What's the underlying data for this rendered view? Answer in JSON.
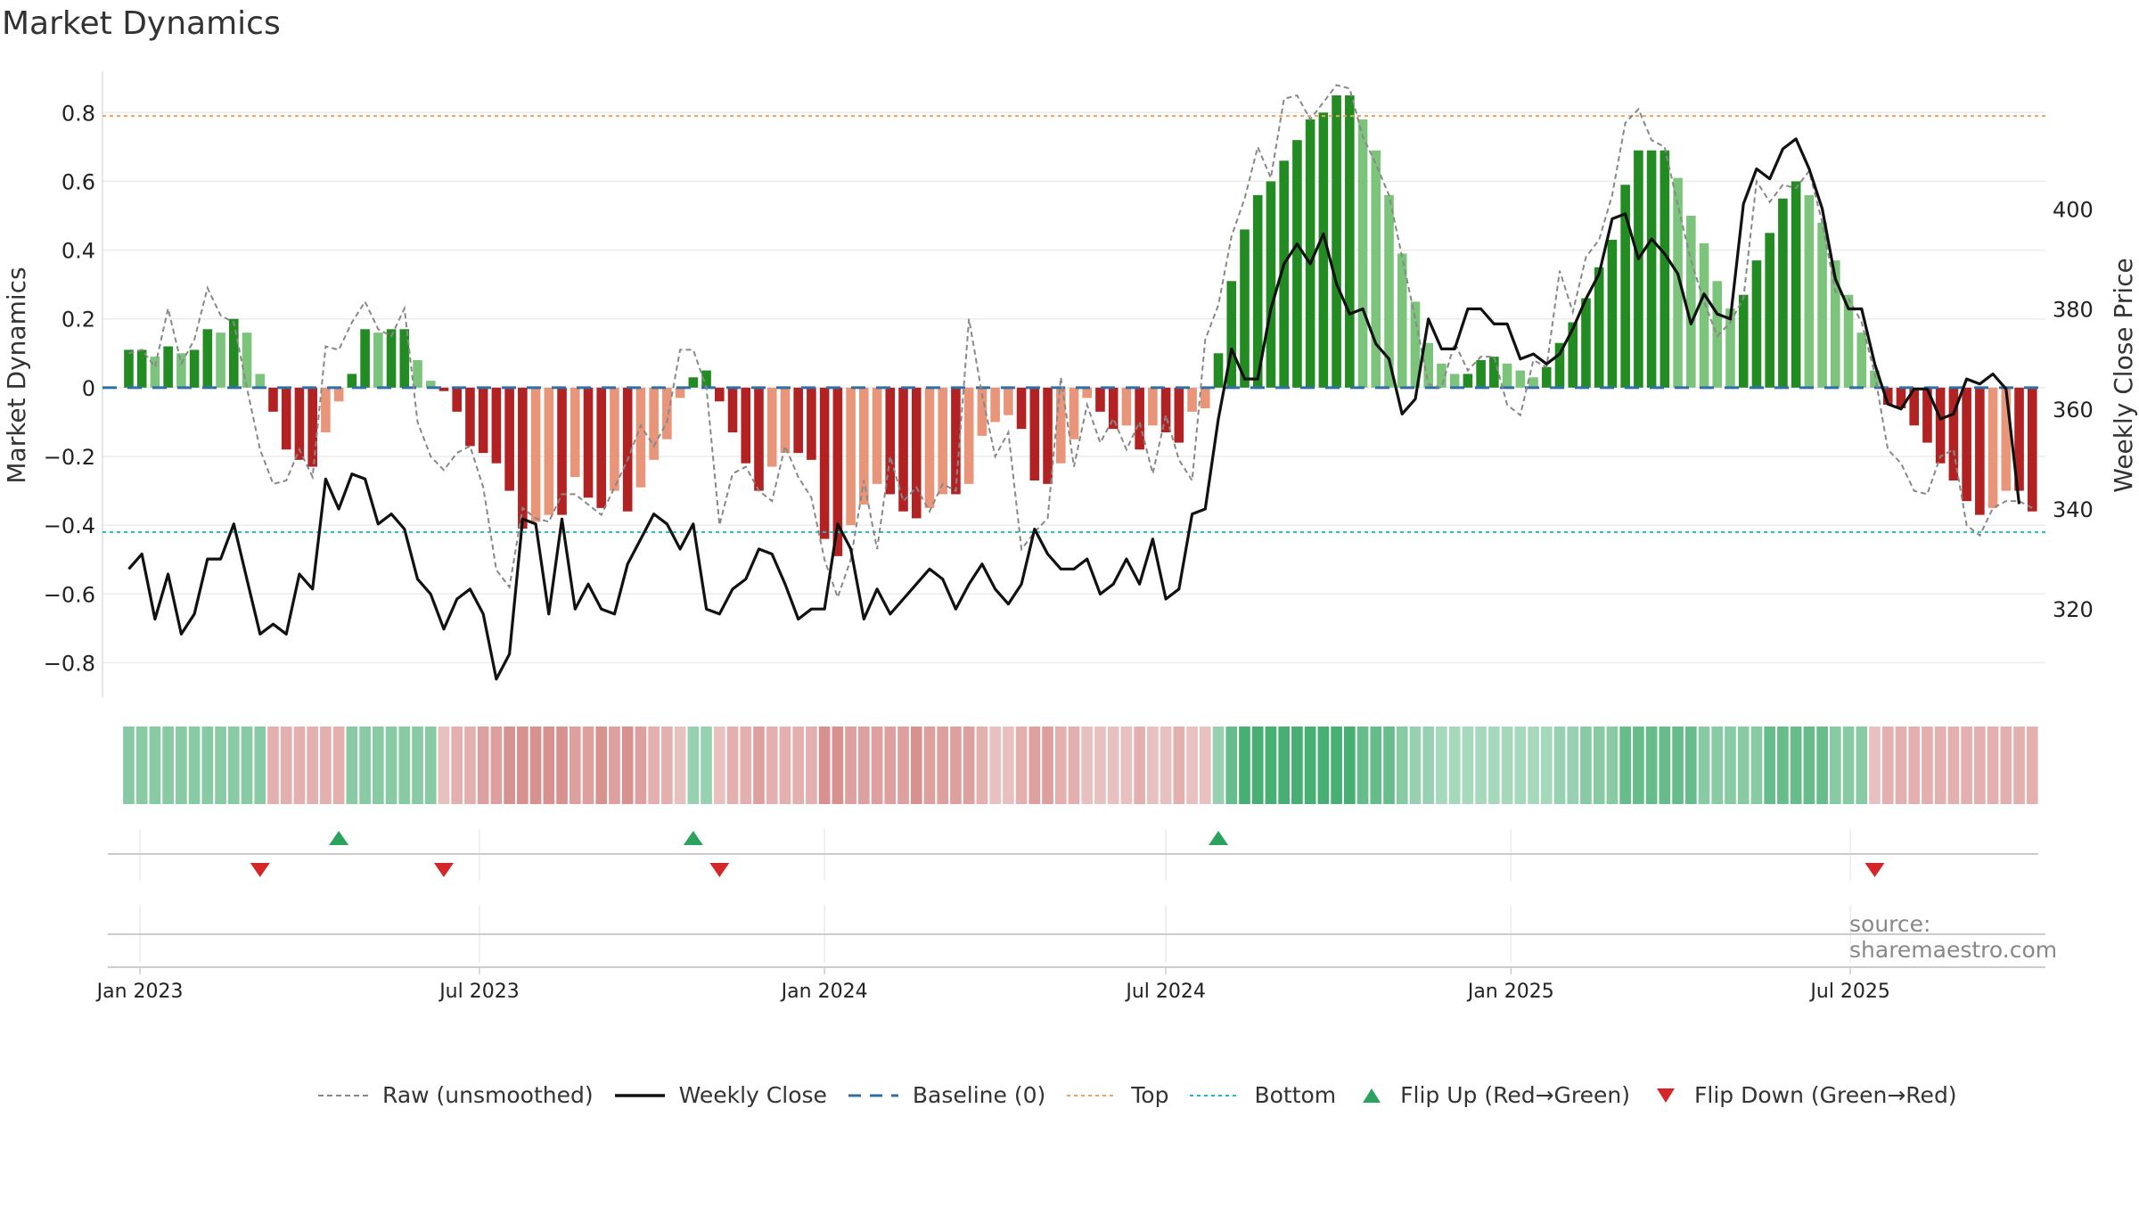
{
  "title": "Market Dynamics",
  "source": "source: sharemaestro.com",
  "legend": [
    {
      "key": "raw",
      "label": "Raw (unsmoothed)",
      "style": "dashed",
      "color": "#888888"
    },
    {
      "key": "close",
      "label": "Weekly Close",
      "style": "solid",
      "color": "#111111"
    },
    {
      "key": "baseline",
      "label": "Baseline (0)",
      "style": "dash-long",
      "color": "#2f6fa8"
    },
    {
      "key": "top",
      "label": "Top",
      "style": "dotted",
      "color": "#f0a060"
    },
    {
      "key": "bottom",
      "label": "Bottom",
      "style": "dotted",
      "color": "#20b8c8"
    },
    {
      "key": "flip_up",
      "label": "Flip Up (Red→Green)",
      "style": "triangle-up",
      "color": "#2ca25f"
    },
    {
      "key": "flip_down",
      "label": "Flip Down (Green→Red)",
      "style": "triangle-down",
      "color": "#d62728"
    }
  ],
  "chart_data": {
    "type": "bar",
    "ylabel": "Market Dynamics",
    "y2label": "Weekly Close Price",
    "ylim": [
      -0.9,
      0.92
    ],
    "y2lim": [
      302.4,
      427.5
    ],
    "yticks": [
      -0.8,
      -0.6,
      -0.4,
      -0.2,
      0,
      0.2,
      0.4,
      0.6,
      0.8
    ],
    "ytick_labels": [
      "−0.8",
      "−0.6",
      "−0.4",
      "−0.2",
      "0",
      "0.2",
      "0.4",
      "0.6",
      "0.8"
    ],
    "y2ticks": [
      320,
      340,
      360,
      380,
      400
    ],
    "y2tick_labels": [
      "320",
      "340",
      "360",
      "380",
      "400"
    ],
    "x_start": "2022-12-26",
    "x_interval_days": 7,
    "x_range": [
      "2022-12-12",
      "2025-10-13"
    ],
    "xticks": [
      "2023-01-01",
      "2023-07-01",
      "2024-01-01",
      "2024-07-01",
      "2025-01-01",
      "2025-07-01"
    ],
    "xtick_labels": [
      "Jan 2023",
      "Jul 2023",
      "Jan 2024",
      "Jul 2024",
      "Jan 2025",
      "Jul 2025"
    ],
    "reference_lines": {
      "baseline": 0,
      "top": 0.79,
      "bottom": -0.42
    },
    "grid": true,
    "legend_position": "bottom",
    "series": [
      {
        "name": "Market Dynamics",
        "type": "bar",
        "values": [
          0.11,
          0.11,
          0.09,
          0.12,
          0.1,
          0.11,
          0.17,
          0.16,
          0.2,
          0.16,
          0.04,
          -0.07,
          -0.18,
          -0.21,
          -0.23,
          -0.13,
          -0.04,
          0.04,
          0.17,
          0.16,
          0.17,
          0.17,
          0.08,
          0.02,
          -0.01,
          -0.07,
          -0.17,
          -0.19,
          -0.22,
          -0.3,
          -0.41,
          -0.39,
          -0.37,
          -0.37,
          -0.26,
          -0.32,
          -0.35,
          -0.3,
          -0.36,
          -0.29,
          -0.21,
          -0.15,
          -0.03,
          0.03,
          0.05,
          -0.04,
          -0.13,
          -0.22,
          -0.3,
          -0.23,
          -0.19,
          -0.19,
          -0.21,
          -0.44,
          -0.49,
          -0.4,
          -0.34,
          -0.28,
          -0.31,
          -0.36,
          -0.38,
          -0.35,
          -0.31,
          -0.31,
          -0.28,
          -0.14,
          -0.1,
          -0.08,
          -0.12,
          -0.27,
          -0.28,
          -0.22,
          -0.15,
          -0.03,
          -0.07,
          -0.12,
          -0.11,
          -0.18,
          -0.11,
          -0.13,
          -0.16,
          -0.07,
          -0.06,
          0.1,
          0.31,
          0.46,
          0.56,
          0.6,
          0.66,
          0.72,
          0.78,
          0.8,
          0.85,
          0.85,
          0.78,
          0.69,
          0.56,
          0.39,
          0.25,
          0.13,
          0.07,
          0.04,
          0.04,
          0.08,
          0.09,
          0.07,
          0.05,
          0.03,
          0.06,
          0.13,
          0.19,
          0.26,
          0.35,
          0.43,
          0.59,
          0.69,
          0.69,
          0.69,
          0.61,
          0.5,
          0.42,
          0.31,
          0.23,
          0.27,
          0.37,
          0.45,
          0.55,
          0.6,
          0.56,
          0.48,
          0.37,
          0.27,
          0.16,
          0.05,
          -0.05,
          -0.06,
          -0.11,
          -0.16,
          -0.22,
          -0.27,
          -0.33,
          -0.37,
          -0.35,
          -0.3,
          -0.3,
          -0.36
        ]
      },
      {
        "name": "Raw (unsmoothed)",
        "type": "line",
        "values": [
          0.1,
          0.11,
          0.06,
          0.23,
          0.07,
          0.14,
          0.29,
          0.21,
          0.19,
          0.0,
          -0.18,
          -0.28,
          -0.27,
          -0.18,
          -0.26,
          0.12,
          0.11,
          0.19,
          0.25,
          0.17,
          0.15,
          0.23,
          -0.1,
          -0.2,
          -0.24,
          -0.19,
          -0.17,
          -0.29,
          -0.53,
          -0.58,
          -0.35,
          -0.38,
          -0.39,
          -0.31,
          -0.31,
          -0.34,
          -0.37,
          -0.29,
          -0.21,
          -0.11,
          -0.17,
          -0.1,
          0.11,
          0.11,
          0.0,
          -0.4,
          -0.25,
          -0.23,
          -0.3,
          -0.33,
          -0.17,
          -0.26,
          -0.32,
          -0.5,
          -0.61,
          -0.5,
          -0.27,
          -0.47,
          -0.2,
          -0.33,
          -0.29,
          -0.36,
          -0.28,
          -0.3,
          0.2,
          -0.02,
          -0.2,
          -0.13,
          -0.47,
          -0.42,
          -0.38,
          0.03,
          -0.23,
          -0.05,
          -0.16,
          -0.09,
          -0.18,
          -0.1,
          -0.25,
          -0.08,
          -0.21,
          -0.27,
          0.14,
          0.24,
          0.44,
          0.55,
          0.7,
          0.61,
          0.84,
          0.85,
          0.78,
          0.83,
          0.88,
          0.87,
          0.73,
          0.65,
          0.56,
          0.38,
          0.2,
          0.01,
          0.0,
          0.13,
          0.05,
          0.09,
          0.09,
          -0.05,
          -0.08,
          0.08,
          0.06,
          0.34,
          0.22,
          0.38,
          0.43,
          0.56,
          0.77,
          0.81,
          0.72,
          0.7,
          0.53,
          0.37,
          0.25,
          0.15,
          0.19,
          0.26,
          0.6,
          0.54,
          0.59,
          0.58,
          0.63,
          0.48,
          0.28,
          0.26,
          0.19,
          0.04,
          -0.18,
          -0.22,
          -0.3,
          -0.31,
          -0.2,
          -0.18,
          -0.4,
          -0.43,
          -0.35,
          -0.33,
          -0.33,
          -0.35
        ]
      },
      {
        "name": "Weekly Close",
        "type": "line",
        "axis": "right",
        "values": [
          328,
          331,
          318,
          327,
          315,
          319,
          330,
          330,
          337,
          326,
          315,
          317,
          315,
          327,
          324,
          346,
          340,
          347,
          346,
          337,
          339,
          336,
          326,
          323,
          316,
          322,
          324,
          319,
          306,
          311,
          338,
          337,
          319,
          338,
          320,
          325,
          320,
          319,
          329,
          334,
          339,
          337,
          332,
          337,
          320,
          319,
          324,
          326,
          332,
          331,
          325,
          318,
          320,
          320,
          337,
          332,
          318,
          324,
          319,
          322,
          325,
          328,
          326,
          320,
          325,
          329,
          324,
          321,
          325,
          336,
          331,
          328,
          328,
          330,
          323,
          325,
          330,
          325,
          334,
          322,
          324,
          339,
          340,
          358,
          372,
          366,
          366,
          380,
          389,
          393,
          389,
          395,
          385,
          379,
          380,
          373,
          370,
          359,
          362,
          378,
          372,
          372,
          380,
          380,
          377,
          377,
          370,
          371,
          369,
          371,
          376,
          382,
          387,
          398,
          399,
          390,
          394,
          391,
          387,
          377,
          383,
          379,
          378,
          401,
          408,
          406,
          412,
          414,
          408,
          400,
          386,
          380,
          380,
          369,
          361,
          360,
          364,
          364,
          358,
          359,
          366,
          365,
          367,
          364,
          341
        ]
      }
    ],
    "regimes": {
      "description": "regime strip colour per week",
      "levels": [
        0.6,
        0.6,
        0.6,
        0.6,
        0.6,
        0.6,
        0.6,
        0.6,
        0.6,
        0.6,
        0.6,
        -0.6,
        -0.6,
        -0.6,
        -0.6,
        -0.6,
        -0.6,
        0.6,
        0.6,
        0.6,
        0.6,
        0.6,
        0.6,
        0.6,
        -0.4,
        -0.6,
        -0.6,
        -0.8,
        -0.8,
        -1,
        -1,
        -1,
        -1,
        -1,
        -0.8,
        -0.8,
        -1,
        -0.8,
        -1,
        -0.8,
        -0.6,
        -0.6,
        -0.4,
        0.5,
        0.5,
        -0.4,
        -0.6,
        -0.6,
        -0.8,
        -0.6,
        -0.6,
        -0.6,
        -0.6,
        -1,
        -1,
        -0.8,
        -0.8,
        -0.8,
        -0.8,
        -0.8,
        -1,
        -0.8,
        -0.8,
        -0.8,
        -0.8,
        -0.6,
        -0.4,
        -0.4,
        -0.6,
        -0.8,
        -0.8,
        -0.6,
        -0.6,
        -0.4,
        -0.4,
        -0.4,
        -0.4,
        -0.6,
        -0.4,
        -0.4,
        -0.6,
        -0.4,
        -0.4,
        0.5,
        0.8,
        1,
        1,
        1,
        1,
        1,
        1,
        1,
        1,
        1,
        0.8,
        0.8,
        0.8,
        0.6,
        0.5,
        0.5,
        0.4,
        0.4,
        0.4,
        0.4,
        0.4,
        0.4,
        0.4,
        0.4,
        0.4,
        0.5,
        0.5,
        0.6,
        0.6,
        0.6,
        0.8,
        0.8,
        0.8,
        0.8,
        0.8,
        0.8,
        0.6,
        0.6,
        0.6,
        0.6,
        0.6,
        0.8,
        0.8,
        0.8,
        0.8,
        0.8,
        0.6,
        0.6,
        0.6,
        -0.4,
        -0.6,
        -0.6,
        -0.6,
        -0.6,
        -0.6,
        -0.6,
        -0.6,
        -0.6,
        -0.6,
        -0.6,
        -0.6,
        -0.6
      ]
    },
    "flips_up": [
      "2023-04-17",
      "2023-10-23",
      "2024-07-29"
    ],
    "flips_down": [
      "2023-03-06",
      "2023-06-12",
      "2023-11-06",
      "2025-07-14"
    ]
  }
}
